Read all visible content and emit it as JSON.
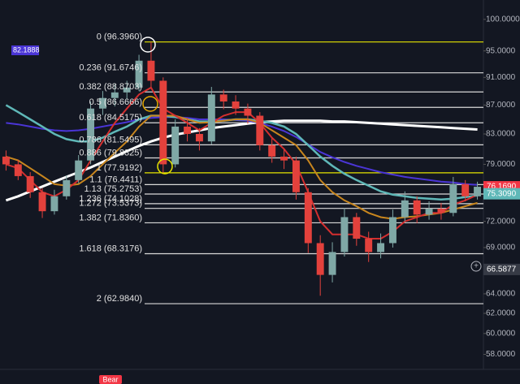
{
  "chart_data": {
    "type": "candlestick",
    "log_scale": true,
    "ylim": [
      56.6,
      103.2
    ],
    "yticks": [
      {
        "value": 100,
        "label": "100.0000"
      },
      {
        "value": 95,
        "label": "95.0000"
      },
      {
        "value": 91,
        "label": "91.0000"
      },
      {
        "value": 87,
        "label": "87.0000"
      },
      {
        "value": 83,
        "label": "83.0000"
      },
      {
        "value": 79,
        "label": "79.0000"
      },
      {
        "value": 72,
        "label": "72.0000"
      },
      {
        "value": 69,
        "label": "69.0000"
      },
      {
        "value": 64,
        "label": "64.0000"
      },
      {
        "value": 62,
        "label": "62.0000"
      },
      {
        "value": 60,
        "label": "60.0000"
      },
      {
        "value": 58,
        "label": "58.0000"
      }
    ],
    "up_color": "#7fa8a6",
    "down_color": "#e3413c",
    "candles": [
      {
        "open": 80.0,
        "high": 80.8,
        "low": 78.2,
        "close": 79.0
      },
      {
        "open": 79.0,
        "high": 79.6,
        "low": 77.0,
        "close": 77.5
      },
      {
        "open": 77.5,
        "high": 78.0,
        "low": 74.8,
        "close": 75.5
      },
      {
        "open": 75.5,
        "high": 76.0,
        "low": 72.4,
        "close": 73.2
      },
      {
        "open": 73.2,
        "high": 75.8,
        "low": 72.8,
        "close": 75.0
      },
      {
        "open": 75.0,
        "high": 77.6,
        "low": 74.6,
        "close": 77.0
      },
      {
        "open": 77.0,
        "high": 80.2,
        "low": 76.6,
        "close": 79.5
      },
      {
        "open": 79.5,
        "high": 87.5,
        "low": 79.0,
        "close": 86.5
      },
      {
        "open": 86.5,
        "high": 89.0,
        "low": 85.6,
        "close": 88.0
      },
      {
        "open": 88.0,
        "high": 90.0,
        "low": 86.8,
        "close": 88.8
      },
      {
        "open": 88.8,
        "high": 90.5,
        "low": 87.8,
        "close": 89.5
      },
      {
        "open": 89.5,
        "high": 94.4,
        "low": 89.0,
        "close": 93.5
      },
      {
        "open": 93.5,
        "high": 96.396,
        "low": 89.6,
        "close": 90.5
      },
      {
        "open": 90.5,
        "high": 91.0,
        "low": 77.9192,
        "close": 79.0
      },
      {
        "open": 79.0,
        "high": 85.0,
        "low": 78.6,
        "close": 84.0
      },
      {
        "open": 84.0,
        "high": 85.2,
        "low": 82.0,
        "close": 83.0
      },
      {
        "open": 83.0,
        "high": 83.8,
        "low": 80.8,
        "close": 82.0
      },
      {
        "open": 82.0,
        "high": 89.6,
        "low": 81.6,
        "close": 88.5
      },
      {
        "open": 88.5,
        "high": 89.2,
        "low": 86.4,
        "close": 87.5
      },
      {
        "open": 87.5,
        "high": 88.4,
        "low": 85.6,
        "close": 86.5
      },
      {
        "open": 86.5,
        "high": 87.2,
        "low": 84.4,
        "close": 85.5
      },
      {
        "open": 85.5,
        "high": 86.0,
        "low": 80.8,
        "close": 81.5
      },
      {
        "open": 81.5,
        "high": 82.4,
        "low": 79.2,
        "close": 80.0
      },
      {
        "open": 80.0,
        "high": 81.0,
        "low": 78.4,
        "close": 79.5
      },
      {
        "open": 79.5,
        "high": 80.0,
        "low": 74.6,
        "close": 75.5
      },
      {
        "open": 75.5,
        "high": 76.0,
        "low": 68.4,
        "close": 69.5
      },
      {
        "open": 69.5,
        "high": 70.4,
        "low": 63.8,
        "close": 66.0
      },
      {
        "open": 66.0,
        "high": 69.6,
        "low": 65.2,
        "close": 68.5
      },
      {
        "open": 68.5,
        "high": 73.6,
        "low": 68.0,
        "close": 72.5
      },
      {
        "open": 72.5,
        "high": 73.0,
        "low": 69.2,
        "close": 70.0
      },
      {
        "open": 70.0,
        "high": 70.8,
        "low": 67.4,
        "close": 68.5
      },
      {
        "open": 68.5,
        "high": 70.6,
        "low": 67.8,
        "close": 69.5
      },
      {
        "open": 69.5,
        "high": 73.4,
        "low": 69.0,
        "close": 72.5
      },
      {
        "open": 72.5,
        "high": 75.6,
        "low": 72.0,
        "close": 74.5
      },
      {
        "open": 74.5,
        "high": 75.0,
        "low": 71.8,
        "close": 72.8
      },
      {
        "open": 72.8,
        "high": 74.4,
        "low": 72.2,
        "close": 73.5
      },
      {
        "open": 73.5,
        "high": 74.2,
        "low": 72.2,
        "close": 73.0
      },
      {
        "open": 73.0,
        "high": 77.4,
        "low": 72.6,
        "close": 76.5
      },
      {
        "open": 76.5,
        "high": 77.0,
        "low": 74.4,
        "close": 75.0
      },
      {
        "open": 75.0,
        "high": 76.8,
        "low": 74.6,
        "close": 76.169
      }
    ],
    "series": [
      {
        "color": "#ffffff",
        "width": 3,
        "values": [
          74.5,
          75,
          75.6,
          76.2,
          76.8,
          77.4,
          78,
          78.6,
          79.3,
          80,
          80.7,
          81.4,
          82,
          82.5,
          82.9,
          83.2,
          83.5,
          83.8,
          84,
          84.2,
          84.4,
          84.6,
          84.7,
          84.8,
          84.8,
          84.8,
          84.8,
          84.7,
          84.7,
          84.6,
          84.5,
          84.4,
          84.3,
          84.2,
          84.1,
          84,
          83.9,
          83.8,
          83.7,
          83.6
        ]
      },
      {
        "color": "#4a35d6",
        "width": 2,
        "values": [
          84.5,
          84.3,
          84,
          83.7,
          83.5,
          83.4,
          83.5,
          83.7,
          84,
          84.3,
          84.6,
          85,
          85.2,
          85.3,
          85.3,
          85.2,
          85,
          85,
          85,
          84.9,
          84.8,
          84.5,
          84,
          83.4,
          82.6,
          81.6,
          80.6,
          79.9,
          79.3,
          78.8,
          78.4,
          78,
          77.7,
          77.4,
          77.2,
          77,
          76.8,
          76.7,
          76.5,
          76.4
        ]
      },
      {
        "color": "#5fb8b8",
        "width": 2.5,
        "values": [
          87,
          86,
          85,
          84,
          83,
          82.3,
          82,
          82,
          82.5,
          83.3,
          84,
          85,
          85.5,
          85.5,
          85.3,
          85,
          84.7,
          84.7,
          84.8,
          85,
          85,
          84.8,
          84.5,
          84,
          83,
          81.5,
          80,
          78.8,
          77.8,
          77,
          76.3,
          75.6,
          75.2,
          75,
          74.8,
          74.7,
          74.6,
          74.7,
          74.9,
          75.1
        ]
      },
      {
        "color": "#c8861e",
        "width": 2,
        "values": [
          80,
          79.5,
          78.5,
          77.5,
          76.5,
          76.3,
          76.5,
          77.5,
          79,
          80.5,
          82,
          84,
          85.5,
          85.5,
          85.5,
          85,
          84.5,
          84.6,
          84.8,
          85,
          85,
          84.5,
          83.5,
          82.5,
          81.5,
          79.5,
          77,
          75.5,
          74.5,
          73.8,
          73,
          72.5,
          72.3,
          72.5,
          72.6,
          72.8,
          73,
          73.4,
          73.8,
          74.2
        ]
      },
      {
        "color": "#d32f2f",
        "width": 2,
        "values": [
          79,
          78.5,
          77,
          75.5,
          75,
          75.8,
          77,
          79.5,
          82,
          84.5,
          86.5,
          88.5,
          89.5,
          86.5,
          85.5,
          84.5,
          83.5,
          84.5,
          85.5,
          86,
          86,
          84.5,
          82.5,
          81,
          79,
          75.5,
          72,
          70.5,
          70.5,
          70.5,
          70,
          70,
          70.8,
          72,
          72.5,
          73,
          73,
          74,
          74.5,
          75.2
        ]
      }
    ],
    "fib_levels": [
      {
        "value": 96.396,
        "label": "0 (96.3960)",
        "color": "#e6e600"
      },
      {
        "value": 91.6746,
        "label": "0.236 (91.6746)",
        "color": "#d9d9d9"
      },
      {
        "value": 88.8703,
        "label": "0.382 (88.8703)",
        "color": "#d9d9d9"
      },
      {
        "value": 86.6666,
        "label": "0.5 (86.6666)",
        "color": "#d9d9d9"
      },
      {
        "value": 84.5175,
        "label": "0.618 (84.5175)",
        "color": "#d9d9d9"
      },
      {
        "value": 81.5495,
        "label": "0.786 (81.5495)",
        "color": "#d9d9d9"
      },
      {
        "value": 79.8325,
        "label": "0.886 (79.8325)",
        "color": "#d9d9d9"
      },
      {
        "value": 77.9192,
        "label": "1 (77.9192)",
        "color": "#e6e600"
      },
      {
        "value": 76.4411,
        "label": "1.1 (76.4411)",
        "color": "#d9d9d9"
      },
      {
        "value": 75.2753,
        "label": "1.13 (75.2753)",
        "color": "#d9d9d9"
      },
      {
        "value": 74.1028,
        "label": "1.236 (74.1028)",
        "color": "#d9d9d9"
      },
      {
        "value": 73.5373,
        "label": "1.272 (73.5373)",
        "color": "#d9d9d9"
      },
      {
        "value": 71.836,
        "label": "1.382 (71.8360)",
        "color": "#d9d9d9"
      },
      {
        "value": 68.3176,
        "label": "1.618 (68.3176)",
        "color": "#d9d9d9"
      },
      {
        "value": 62.984,
        "label": "2 (62.9840)",
        "color": "#d9d9d9"
      }
    ],
    "price_tags": [
      {
        "value": 76.169,
        "label": "76.1690",
        "color": "#f23645"
      },
      {
        "value": 75.309,
        "label": "75.3090",
        "color": "#5fb8b8"
      },
      {
        "value": 66.5877,
        "label": "66.5877",
        "color": "#363a45"
      }
    ],
    "side_tag": {
      "value": 82.1888,
      "label": "82.1888",
      "color": "#4a35d6"
    },
    "annotation": "Bear"
  }
}
